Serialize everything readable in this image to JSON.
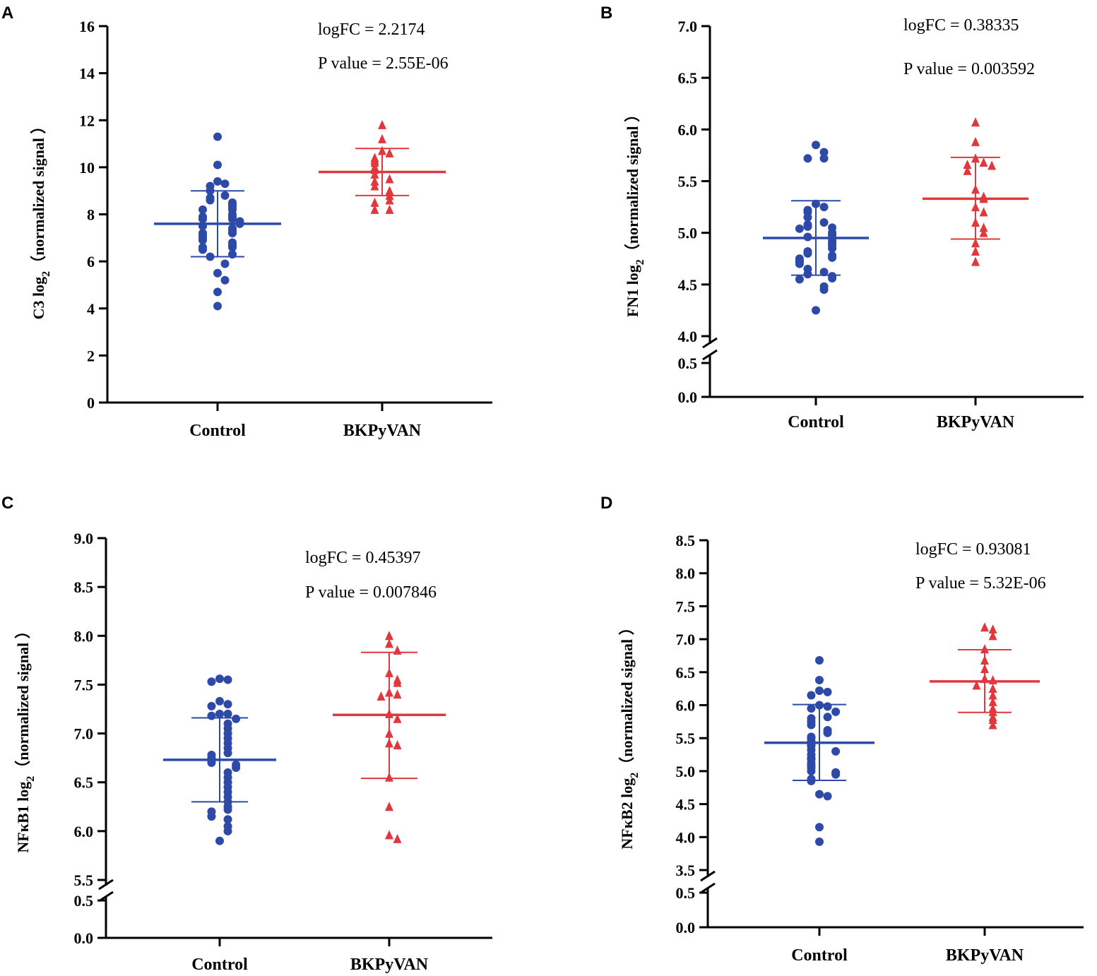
{
  "figure": {
    "type": "multi-panel scatter/dot plot"
  },
  "chart_data": [
    {
      "panel": "A",
      "type": "scatter",
      "categories": [
        "Control",
        "BKPyVAN"
      ],
      "ylabel_main": "C3 log",
      "ylabel_sub": "2",
      "ylabel_tail": "（normalized signal ）",
      "ylim": [
        0,
        16
      ],
      "ticks": [
        0,
        2,
        4,
        6,
        8,
        10,
        12,
        14,
        16
      ],
      "tick_labels": [
        "0",
        "2",
        "4",
        "6",
        "8",
        "10",
        "12",
        "14",
        "16"
      ],
      "axis_break": null,
      "annotations": [
        "logFC = 2.2174",
        "P value = 2.55E-06"
      ],
      "series": [
        {
          "name": "Control",
          "marker": "circle",
          "color": "#2E4AA8",
          "mean": 7.6,
          "sd_low": 6.2,
          "sd_high": 9.0,
          "values": [
            11.3,
            10.1,
            9.4,
            9.3,
            9.2,
            9.0,
            8.8,
            8.7,
            8.6,
            8.5,
            8.4,
            8.3,
            8.2,
            8.2,
            8.0,
            7.9,
            7.9,
            7.8,
            7.8,
            7.7,
            7.6,
            7.5,
            7.4,
            7.3,
            7.2,
            7.2,
            7.1,
            7.0,
            6.9,
            6.8,
            6.7,
            6.6,
            6.6,
            6.5,
            6.3,
            6.2,
            5.9,
            5.5,
            5.2,
            4.7,
            4.1
          ]
        },
        {
          "name": "BKPyVAN",
          "marker": "triangle",
          "color": "#E0383C",
          "mean": 9.8,
          "sd_low": 8.8,
          "sd_high": 10.8,
          "values": [
            11.8,
            11.2,
            10.7,
            10.6,
            10.4,
            10.3,
            10.2,
            10.0,
            9.9,
            9.7,
            9.5,
            9.4,
            9.2,
            9.0,
            8.8,
            8.6,
            8.5,
            8.2,
            8.2
          ]
        }
      ]
    },
    {
      "panel": "B",
      "type": "scatter",
      "categories": [
        "Control",
        "BKPyVAN"
      ],
      "ylabel_main": "FN1 log",
      "ylabel_sub": "2",
      "ylabel_tail": "（normalized signal ）",
      "ylim": [
        0,
        7.0
      ],
      "ticks": [
        0.0,
        0.5,
        4.0,
        4.5,
        5.0,
        5.5,
        6.0,
        6.5,
        7.0
      ],
      "tick_labels": [
        "0.0",
        "0.5",
        "4.0",
        "4.5",
        "5.0",
        "5.5",
        "6.0",
        "6.5",
        "7.0"
      ],
      "axis_break": [
        0.5,
        4.0
      ],
      "annotations": [
        "logFC = 0.38335",
        "P value = 0.003592"
      ],
      "series": [
        {
          "name": "Control",
          "marker": "circle",
          "color": "#2E4AA8",
          "mean": 4.95,
          "sd_low": 4.59,
          "sd_high": 5.31,
          "values": [
            5.85,
            5.78,
            5.72,
            5.72,
            5.28,
            5.25,
            5.22,
            5.2,
            5.15,
            5.1,
            5.08,
            5.06,
            5.05,
            5.04,
            5.0,
            4.98,
            4.96,
            4.95,
            4.92,
            4.9,
            4.88,
            4.85,
            4.82,
            4.8,
            4.78,
            4.76,
            4.75,
            4.73,
            4.72,
            4.7,
            4.65,
            4.62,
            4.6,
            4.58,
            4.56,
            4.55,
            4.48,
            4.45,
            4.25
          ]
        },
        {
          "name": "BKPyVAN",
          "marker": "triangle",
          "color": "#E0383C",
          "mean": 5.33,
          "sd_low": 4.94,
          "sd_high": 5.73,
          "values": [
            6.07,
            5.88,
            5.72,
            5.68,
            5.66,
            5.65,
            5.6,
            5.42,
            5.35,
            5.33,
            5.25,
            5.2,
            5.1,
            5.05,
            5.0,
            4.9,
            4.82,
            4.72
          ]
        }
      ]
    },
    {
      "panel": "C",
      "type": "scatter",
      "categories": [
        "Control",
        "BKPyVAN"
      ],
      "ylabel_main": "NFκB1 log",
      "ylabel_sub": "2",
      "ylabel_tail": "（normalized signal ）",
      "ylim": [
        0,
        9.0
      ],
      "ticks": [
        0.0,
        0.5,
        5.5,
        6.0,
        6.5,
        7.0,
        7.5,
        8.0,
        8.5,
        9.0
      ],
      "tick_labels": [
        "0.0",
        "0.5",
        "5.5",
        "6.0",
        "6.5",
        "7.0",
        "7.5",
        "8.0",
        "8.5",
        "9.0"
      ],
      "axis_break": [
        0.5,
        5.5
      ],
      "annotations": [
        "logFC = 0.45397",
        "P value = 0.007846"
      ],
      "series": [
        {
          "name": "Control",
          "marker": "circle",
          "color": "#2E4AA8",
          "mean": 6.73,
          "sd_low": 6.3,
          "sd_high": 7.16,
          "values": [
            7.56,
            7.55,
            7.53,
            7.33,
            7.3,
            7.28,
            7.2,
            7.2,
            7.18,
            7.15,
            7.1,
            7.05,
            7.0,
            6.95,
            6.9,
            6.85,
            6.8,
            6.78,
            6.75,
            6.72,
            6.7,
            6.68,
            6.65,
            6.6,
            6.55,
            6.5,
            6.45,
            6.4,
            6.35,
            6.3,
            6.25,
            6.22,
            6.2,
            6.15,
            6.12,
            6.05,
            6.0,
            5.9
          ]
        },
        {
          "name": "BKPyVAN",
          "marker": "triangle",
          "color": "#E0383C",
          "mean": 7.19,
          "sd_low": 6.54,
          "sd_high": 7.83,
          "values": [
            8.0,
            7.92,
            7.85,
            7.62,
            7.55,
            7.52,
            7.42,
            7.4,
            7.38,
            7.2,
            7.15,
            7.0,
            6.9,
            6.88,
            6.55,
            6.25,
            5.96,
            5.92
          ]
        }
      ]
    },
    {
      "panel": "D",
      "type": "scatter",
      "categories": [
        "Control",
        "BKPyVAN"
      ],
      "ylabel_main": "NFκB2 log",
      "ylabel_sub": "2",
      "ylabel_tail": "（normalized signal ）",
      "ylim": [
        0,
        8.5
      ],
      "ticks": [
        0.0,
        0.5,
        3.5,
        4.0,
        4.5,
        5.0,
        5.5,
        6.0,
        6.5,
        7.0,
        7.5,
        8.0,
        8.5
      ],
      "tick_labels": [
        "0.0",
        "0.5",
        "3.5",
        "4.0",
        "4.5",
        "5.0",
        "5.5",
        "6.0",
        "6.5",
        "7.0",
        "7.5",
        "8.0",
        "8.5"
      ],
      "axis_break": [
        0.5,
        3.5
      ],
      "annotations": [
        "logFC = 0.93081",
        "P value = 5.32E-06"
      ],
      "series": [
        {
          "name": "Control",
          "marker": "circle",
          "color": "#2E4AA8",
          "mean": 5.43,
          "sd_low": 4.86,
          "sd_high": 6.01,
          "values": [
            6.68,
            6.38,
            6.22,
            6.2,
            6.15,
            6.0,
            5.98,
            5.95,
            5.9,
            5.82,
            5.8,
            5.75,
            5.7,
            5.62,
            5.58,
            5.52,
            5.5,
            5.45,
            5.4,
            5.38,
            5.32,
            5.3,
            5.25,
            5.2,
            5.18,
            5.12,
            5.08,
            5.05,
            5.0,
            4.98,
            4.95,
            4.88,
            4.85,
            4.65,
            4.62,
            4.15,
            3.93
          ]
        },
        {
          "name": "BKPyVAN",
          "marker": "triangle",
          "color": "#E0383C",
          "mean": 6.36,
          "sd_low": 5.89,
          "sd_high": 6.84,
          "values": [
            7.18,
            7.15,
            7.05,
            6.85,
            6.68,
            6.55,
            6.4,
            6.38,
            6.3,
            6.25,
            6.15,
            6.05,
            5.95,
            5.9,
            5.82,
            5.78,
            5.7
          ]
        }
      ]
    }
  ]
}
